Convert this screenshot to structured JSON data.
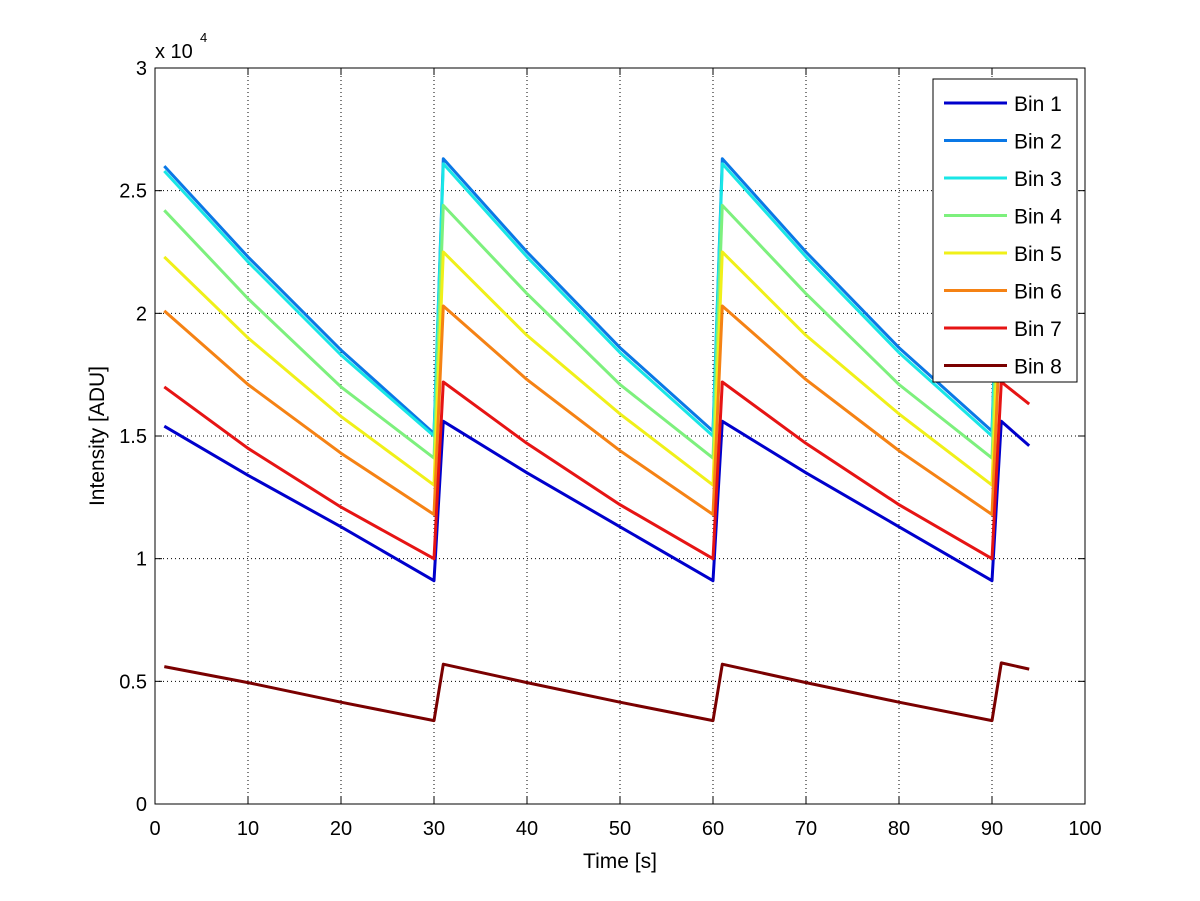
{
  "chart_data": {
    "type": "line",
    "title": "",
    "xlabel": "Time [s]",
    "ylabel": "Intensity [ADU]",
    "y_exponent_label": "x 10",
    "y_exponent": "4",
    "xlim": [
      0,
      100
    ],
    "ylim": [
      0,
      30000
    ],
    "xticks": [
      0,
      10,
      20,
      30,
      40,
      50,
      60,
      70,
      80,
      90,
      100
    ],
    "xtick_labels": [
      "0",
      "10",
      "20",
      "30",
      "40",
      "50",
      "60",
      "70",
      "80",
      "90",
      "100"
    ],
    "yticks": [
      0,
      5000,
      10000,
      15000,
      20000,
      25000,
      30000
    ],
    "ytick_labels": [
      "0",
      "0.5",
      "1",
      "1.5",
      "2",
      "2.5",
      "3"
    ],
    "grid": true,
    "legend_position": "top-right",
    "x": [
      1,
      10,
      20,
      30,
      31,
      40,
      50,
      60,
      61,
      70,
      80,
      90,
      91,
      94
    ],
    "series": [
      {
        "name": "Bin 1",
        "color": "#0000cc",
        "values": [
          15400,
          13400,
          11300,
          9100,
          15600,
          13500,
          11300,
          9100,
          15600,
          13500,
          11300,
          9100,
          15600,
          14600
        ]
      },
      {
        "name": "Bin 2",
        "color": "#0a78e6",
        "values": [
          26000,
          22300,
          18500,
          15100,
          26300,
          22500,
          18600,
          15200,
          26300,
          22500,
          18600,
          15200,
          26300,
          25200
        ]
      },
      {
        "name": "Bin 3",
        "color": "#19e6e6",
        "values": [
          25800,
          22100,
          18300,
          15000,
          26100,
          22300,
          18400,
          15000,
          26100,
          22300,
          18400,
          15000,
          26100,
          25000
        ]
      },
      {
        "name": "Bin 4",
        "color": "#7df07d",
        "values": [
          24200,
          20600,
          17000,
          14100,
          24400,
          20800,
          17100,
          14100,
          24400,
          20800,
          17100,
          14100,
          24400,
          23400
        ]
      },
      {
        "name": "Bin 5",
        "color": "#f0f019",
        "values": [
          22300,
          19000,
          15800,
          13000,
          22500,
          19100,
          15900,
          13000,
          22500,
          19100,
          15900,
          13000,
          22500,
          21500
        ]
      },
      {
        "name": "Bin 6",
        "color": "#f58214",
        "values": [
          20100,
          17100,
          14300,
          11800,
          20300,
          17300,
          14400,
          11800,
          20300,
          17300,
          14400,
          11800,
          20300,
          19400
        ]
      },
      {
        "name": "Bin 7",
        "color": "#e61414",
        "values": [
          17000,
          14500,
          12100,
          10000,
          17200,
          14700,
          12200,
          10000,
          17200,
          14700,
          12200,
          10000,
          17200,
          16300
        ]
      },
      {
        "name": "Bin 8",
        "color": "#7a0000",
        "values": [
          5600,
          4950,
          4150,
          3400,
          5700,
          4950,
          4150,
          3400,
          5700,
          4950,
          4150,
          3400,
          5750,
          5500
        ]
      }
    ]
  }
}
